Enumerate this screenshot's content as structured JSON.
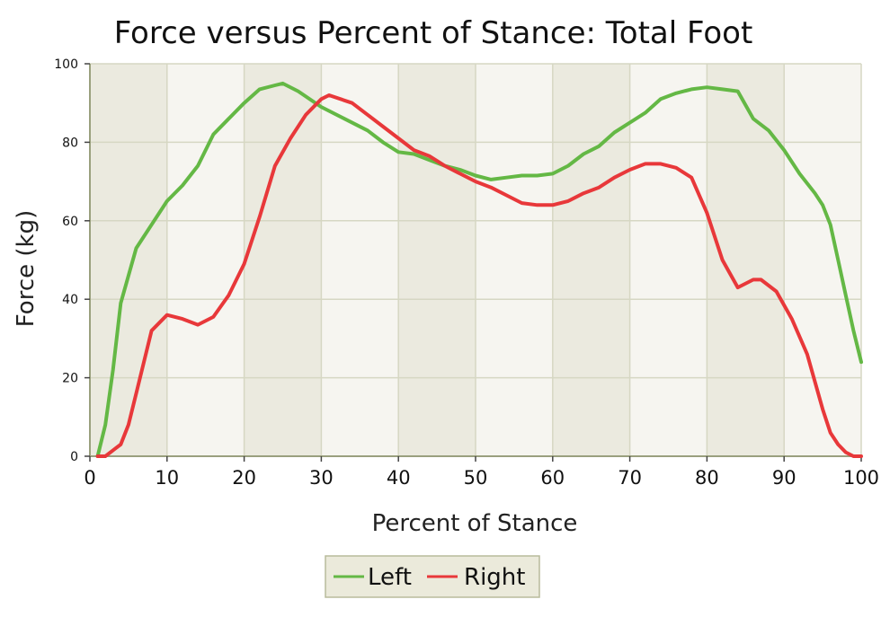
{
  "chart_data": {
    "type": "line",
    "title": "Force versus Percent of Stance: Total Foot",
    "xlabel": "Percent of Stance",
    "ylabel": "Force (kg)",
    "xlim": [
      0,
      100
    ],
    "ylim": [
      0,
      100
    ],
    "xticks": [
      0,
      10,
      20,
      30,
      40,
      50,
      60,
      70,
      80,
      90,
      100
    ],
    "yticks": [
      0,
      20,
      40,
      60,
      80,
      100
    ],
    "grid": true,
    "legend_position": "bottom-center",
    "colors": {
      "left": "#64b845",
      "right": "#e8383a",
      "band_dark": "#ebeadf",
      "band_light": "#f6f5f0",
      "grid": "#d6d7c3",
      "axis": "#9aa07e",
      "legend_bg": "#ebeadb",
      "legend_border": "#b8bb9c"
    },
    "series": [
      {
        "name": "Left",
        "color": "#64b845",
        "x": [
          1,
          2,
          3,
          4,
          6,
          8,
          10,
          12,
          14,
          16,
          18,
          20,
          22,
          24,
          25,
          27,
          30,
          33,
          36,
          38,
          40,
          42,
          44,
          46,
          48,
          50,
          52,
          54,
          56,
          58,
          60,
          62,
          64,
          66,
          68,
          70,
          72,
          74,
          76,
          78,
          80,
          82,
          84,
          86,
          88,
          90,
          92,
          94,
          95,
          96,
          97,
          98,
          99,
          100
        ],
        "y": [
          0,
          8,
          22,
          39,
          53,
          59,
          65,
          69,
          74,
          82,
          86,
          90,
          93.5,
          94.5,
          95,
          93,
          89,
          86,
          83,
          80,
          77.5,
          77,
          75.5,
          74,
          73,
          71.5,
          70.5,
          71,
          71.5,
          71.5,
          72,
          74,
          77,
          79,
          82.5,
          85,
          87.5,
          91,
          92.5,
          93.5,
          94,
          93.5,
          93,
          86,
          83,
          78,
          72,
          67,
          64,
          59,
          50,
          41,
          32,
          24
        ]
      },
      {
        "name": "Right",
        "color": "#e8383a",
        "x": [
          1,
          2,
          3,
          4,
          5,
          6,
          8,
          10,
          12,
          14,
          16,
          18,
          20,
          22,
          24,
          26,
          28,
          30,
          31,
          34,
          36,
          38,
          40,
          42,
          44,
          46,
          48,
          50,
          52,
          54,
          56,
          58,
          60,
          62,
          64,
          66,
          68,
          70,
          72,
          74,
          76,
          78,
          80,
          82,
          84,
          86,
          87,
          89,
          91,
          93,
          95,
          96,
          97,
          98,
          99,
          100
        ],
        "y": [
          0,
          0,
          1.5,
          3,
          8,
          16,
          32,
          36,
          35,
          33.5,
          35.5,
          41,
          49,
          61,
          74,
          81,
          87,
          91,
          92,
          90,
          87,
          84,
          81,
          78,
          76.5,
          74,
          72,
          70,
          68.5,
          66.5,
          64.5,
          64,
          64,
          65,
          67,
          68.5,
          71,
          73,
          74.5,
          74.5,
          73.5,
          71,
          62,
          50,
          43,
          45,
          45,
          42,
          35,
          26,
          12,
          6,
          3,
          1,
          0,
          0
        ]
      }
    ]
  }
}
